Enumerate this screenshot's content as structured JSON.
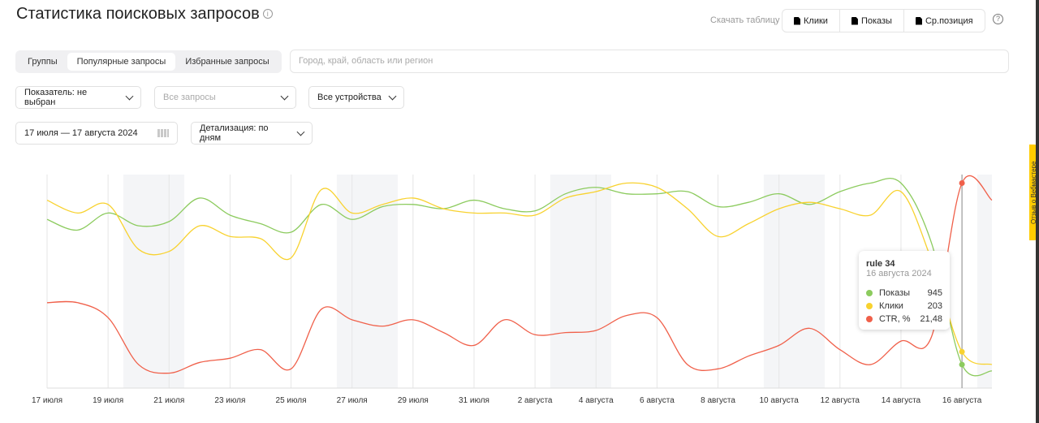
{
  "header": {
    "title": "Статистика поисковых запросов",
    "info": "i",
    "download_label": "Скачать таблицу",
    "download_buttons": [
      "Клики",
      "Показы",
      "Ср.позиция"
    ],
    "help": "?"
  },
  "tabs": [
    "Группы",
    "Популярные запросы",
    "Избранные запросы"
  ],
  "region_placeholder": "Город, край, область или регион",
  "filters": {
    "indicator": "Показатель: не выбран",
    "queries": "Все запросы",
    "devices": "Все устройства",
    "date_range": "17 июля — 17 августа 2024",
    "detail": "Детализация: по дням"
  },
  "feedback": "Отзыв о Вебмастере",
  "tooltip": {
    "title": "rule 34",
    "date": "16 августа 2024",
    "rows": [
      {
        "label": "Показы",
        "value": "945"
      },
      {
        "label": "Клики",
        "value": "203"
      },
      {
        "label": "CTR, %",
        "value": "21,48"
      }
    ]
  },
  "colors": {
    "shows": "#8ccb5e",
    "clicks": "#f8d22f",
    "ctr": "#f0604a"
  },
  "chart_data": {
    "type": "line",
    "x_start": "2024-07-17",
    "x_days": 32,
    "ylim": [
      0,
      100
    ],
    "tick_labels": [
      "17 июля",
      "19 июля",
      "21 июля",
      "23 июля",
      "25 июля",
      "27 июля",
      "29 июля",
      "31 июля",
      "2 августа",
      "4 августа",
      "6 августа",
      "8 августа",
      "10 августа",
      "12 августа",
      "14 августа",
      "16 августа"
    ],
    "weekends": [
      [
        3,
        5
      ],
      [
        10,
        12
      ],
      [
        17,
        19
      ],
      [
        24,
        26
      ],
      [
        31,
        32
      ]
    ],
    "hover_index": 30,
    "series": [
      {
        "name": "Показы",
        "color": "#8ccb5e",
        "values": [
          79,
          74,
          82,
          76,
          78,
          89,
          81,
          77,
          73,
          86,
          79,
          85,
          86,
          84,
          88,
          84,
          83,
          91,
          94,
          91,
          91,
          92,
          85,
          87,
          91,
          86,
          92,
          96,
          96,
          68,
          11,
          8
        ]
      },
      {
        "name": "Клики",
        "color": "#f8d22f",
        "values": [
          88,
          82,
          86,
          65,
          64,
          76,
          71,
          70,
          61,
          93,
          82,
          86,
          89,
          84,
          82,
          82,
          81,
          89,
          92,
          96,
          94,
          84,
          71,
          77,
          84,
          87,
          84,
          81,
          92,
          60,
          17,
          11
        ]
      },
      {
        "name": "CTR, %",
        "color": "#f0604a",
        "values": [
          40,
          40,
          33,
          11,
          7,
          12,
          14,
          18,
          9,
          37,
          32,
          29,
          32,
          26,
          20,
          32,
          25,
          26,
          27,
          34,
          33,
          11,
          9,
          15,
          20,
          28,
          18,
          11,
          22,
          24,
          96,
          88
        ]
      }
    ]
  }
}
